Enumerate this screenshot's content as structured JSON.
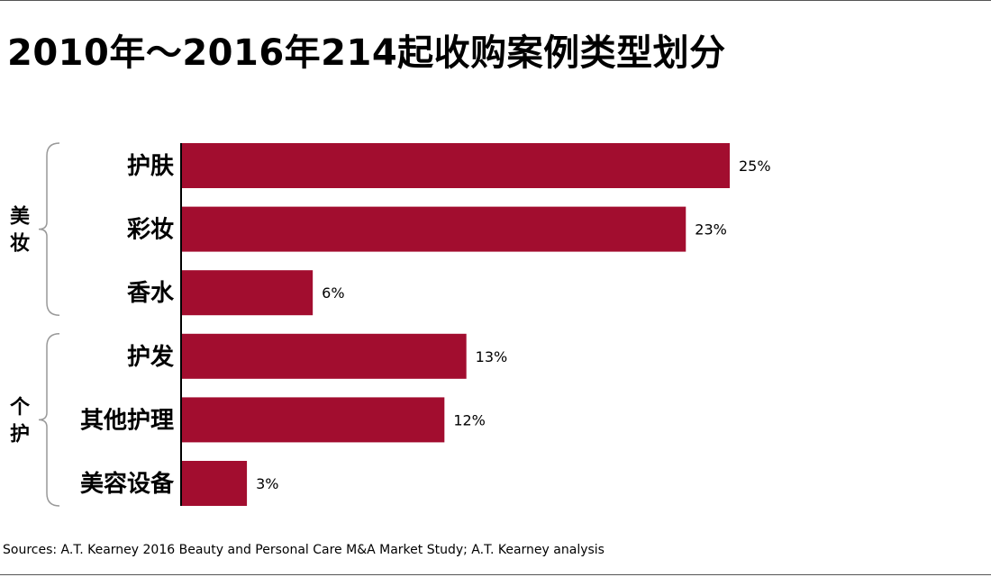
{
  "title": "2010年～2016年214起收购案例类型划分",
  "source": "Sources: A.T. Kearney 2016 Beauty and Personal Care M&A Market Study; A.T. Kearney analysis",
  "colors": {
    "bar": "#A20D2F",
    "axis": "#000000",
    "bracket": "#999999"
  },
  "chart_data": {
    "type": "bar",
    "orientation": "horizontal",
    "title": "2010年～2016年214起收购案例类型划分",
    "categories": [
      "护肤",
      "彩妆",
      "香水",
      "护发",
      "其他护理",
      "美容设备"
    ],
    "values": [
      25,
      23,
      6,
      13,
      12,
      3
    ],
    "value_labels": [
      "25%",
      "23%",
      "6%",
      "13%",
      "12%",
      "3%"
    ],
    "unit": "%",
    "groups": [
      {
        "label": "美妆",
        "categories": [
          "护肤",
          "彩妆",
          "香水"
        ]
      },
      {
        "label": "个护",
        "categories": [
          "护发",
          "其他护理",
          "美容设备"
        ]
      }
    ],
    "xlim": [
      0,
      25
    ],
    "grid": false,
    "legend": "none"
  }
}
